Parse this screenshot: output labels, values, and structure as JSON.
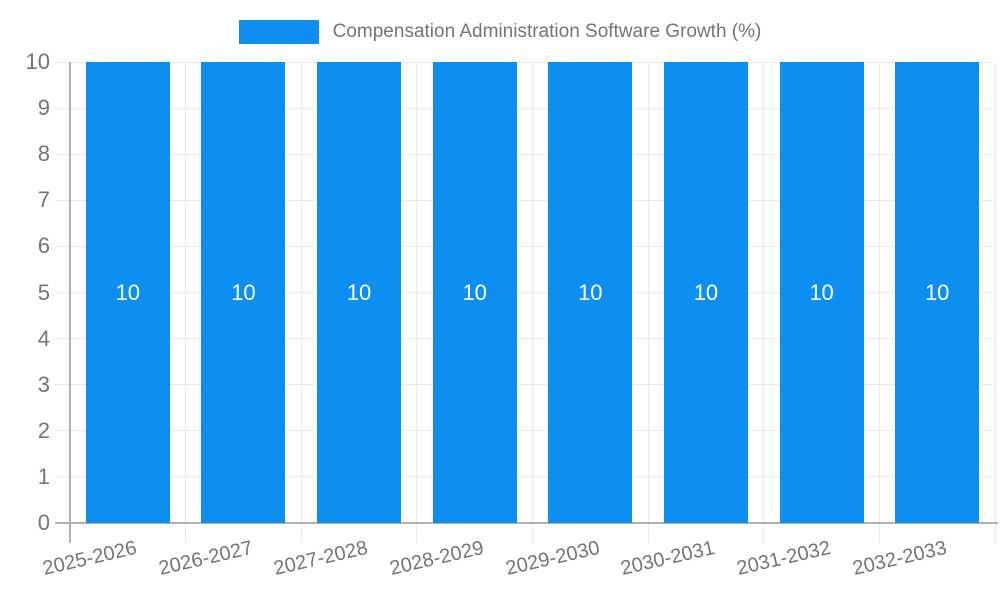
{
  "legend": {
    "label": "Compensation Administration Software Growth (%)"
  },
  "chart_data": {
    "type": "bar",
    "title": "Compensation Administration Software Growth (%)",
    "categories": [
      "2025-2026",
      "2026-2027",
      "2027-2028",
      "2028-2029",
      "2029-2030",
      "2030-2031",
      "2031-2032",
      "2032-2033"
    ],
    "values": [
      10,
      10,
      10,
      10,
      10,
      10,
      10,
      10
    ],
    "bar_value_labels": [
      "10",
      "10",
      "10",
      "10",
      "10",
      "10",
      "10",
      "10"
    ],
    "xlabel": "",
    "ylabel": "",
    "y_ticks": [
      0,
      1,
      2,
      3,
      4,
      5,
      6,
      7,
      8,
      9,
      10
    ],
    "ylim": [
      0,
      10
    ],
    "grid": true,
    "legend_position": "top",
    "colors": {
      "bar": "#0d8ff2",
      "grid": "#e9e9e9",
      "axis": "#b0b0b0",
      "text": "#757575",
      "bar_label": "#ffffff",
      "background": "#ffffff"
    }
  }
}
